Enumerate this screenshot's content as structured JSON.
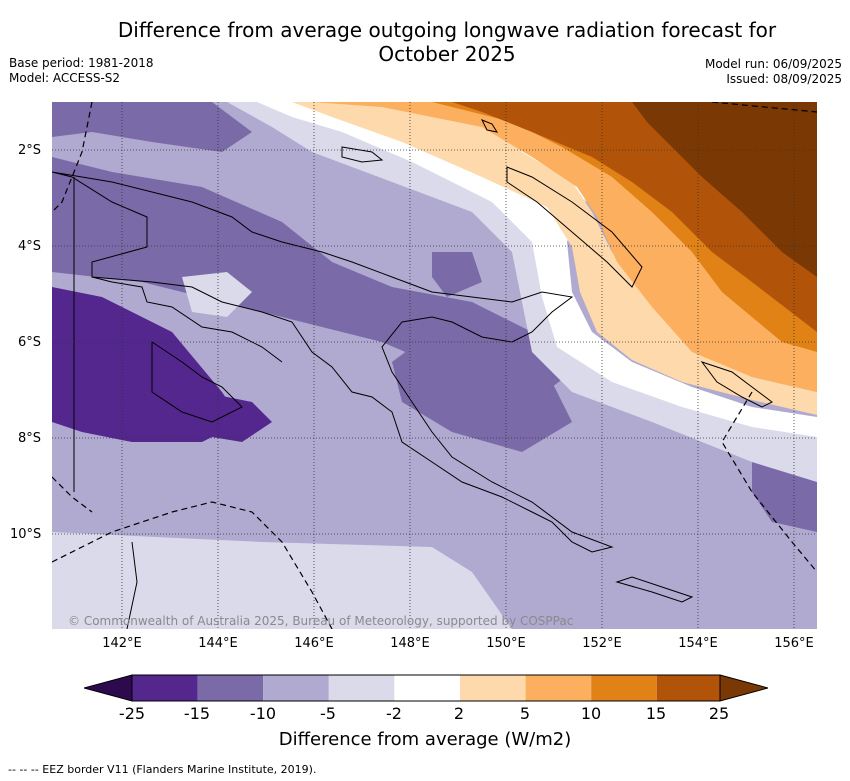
{
  "title": "Difference from average outgoing longwave radiation forecast for October 2025",
  "title_line1": "Difference from average outgoing longwave radiation forecast for",
  "title_line2": "October 2025",
  "base_period": "Base period: 1981-2018",
  "model": "Model: ACCESS-S2",
  "model_run": "Model run: 06/09/2025",
  "issued": "Issued: 08/09/2025",
  "lat_labels": [
    "2°S",
    "4°S",
    "6°S",
    "8°S",
    "10°S"
  ],
  "lon_labels": [
    "142°E",
    "144°E",
    "146°E",
    "148°E",
    "150°E",
    "152°E",
    "154°E",
    "156°E"
  ],
  "copyright": "© Commonwealth of Australia 2025, Bureau of Meteorology, supported by COSPPac",
  "colorbar": {
    "ticks": [
      "-25",
      "-15",
      "-10",
      "-5",
      "-2",
      "2",
      "5",
      "10",
      "15",
      "25"
    ],
    "colors": [
      "#2d0a4e",
      "#54278f",
      "#7b6aa8",
      "#b0a9d0",
      "#dadaeb",
      "#ffffff",
      "#fdd9ac",
      "#fbaf5f",
      "#e08216",
      "#b1540a",
      "#7a3805"
    ],
    "label": "Difference from average (W/m2)"
  },
  "footer": "-- -- -- EEZ border V11 (Flanders Marine Institute, 2019)."
}
